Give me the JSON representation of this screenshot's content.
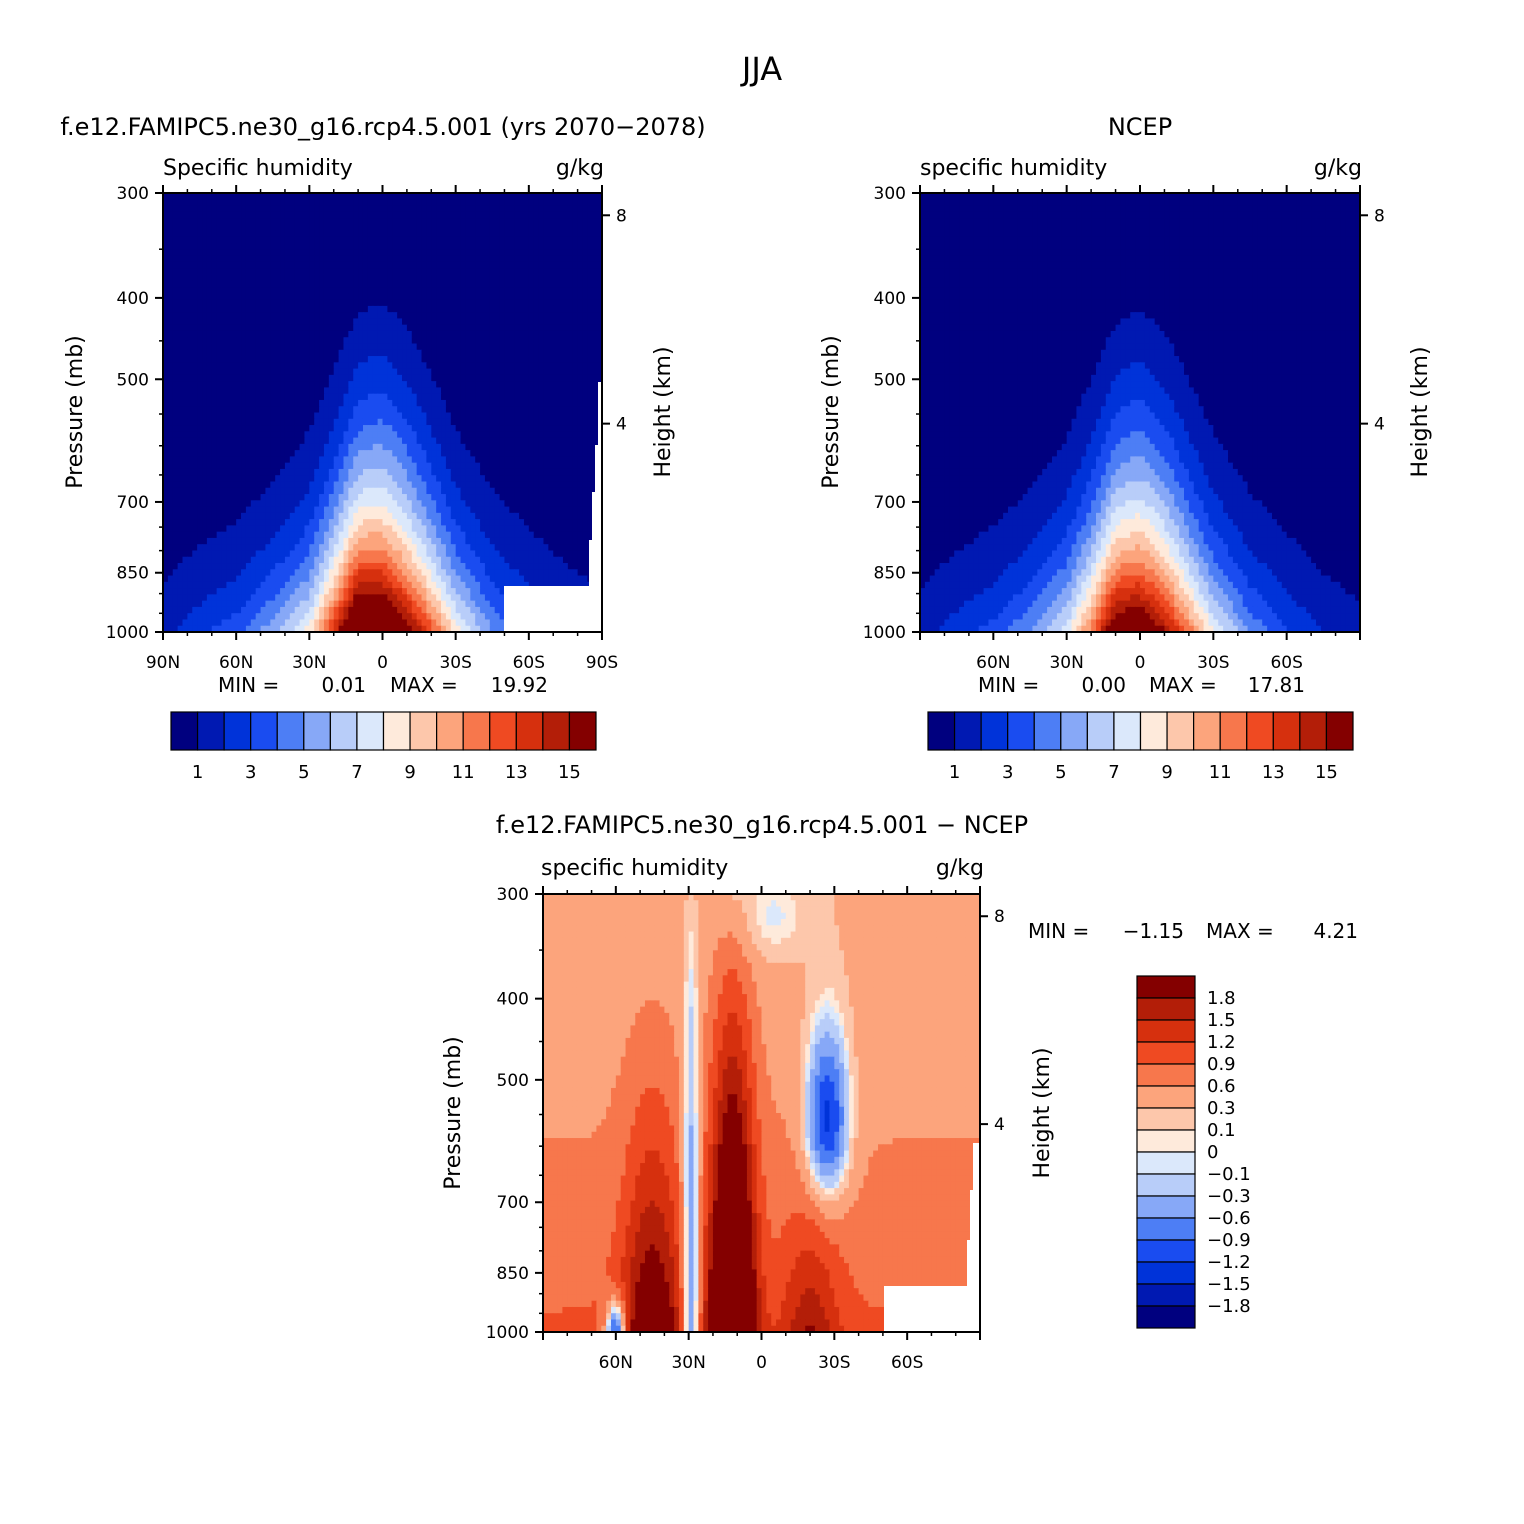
{
  "figure_title": "JJA",
  "chart_data": [
    {
      "type": "heatmap",
      "title": "f.e12.FAMIPC5.ne30_g16.rcp4.5.001 (yrs 2070-2078)",
      "left_label": "Specific humidity",
      "right_label": "g/kg",
      "xlabel": "",
      "ylabel": "Pressure (mb)",
      "y2label": "Height (km)",
      "x_ticks": [
        "90N",
        "60N",
        "30N",
        "0",
        "30S",
        "60S",
        "90S"
      ],
      "y_ticks": [
        "300",
        "400",
        "500",
        "700",
        "850",
        "1000"
      ],
      "y2_ticks": [
        "8",
        "4"
      ],
      "ylim": [
        1000,
        300
      ],
      "stats": {
        "min_label": "MIN =",
        "min": "0.01",
        "max_label": "MAX =",
        "max": "19.92"
      },
      "colorbar_labels": [
        "1",
        "3",
        "5",
        "7",
        "9",
        "11",
        "13",
        "15"
      ],
      "profile": [
        {
          "lat": 90,
          "q": 1.5
        },
        {
          "lat": 75,
          "q": 2.6
        },
        {
          "lat": 60,
          "q": 3.5
        },
        {
          "lat": 45,
          "q": 5.6
        },
        {
          "lat": 30,
          "q": 8.3
        },
        {
          "lat": 20,
          "q": 13.5
        },
        {
          "lat": 10,
          "q": 19.5
        },
        {
          "lat": 0,
          "q": 19.0
        },
        {
          "lat": -10,
          "q": 16.0
        },
        {
          "lat": -20,
          "q": 12.5
        },
        {
          "lat": -30,
          "q": 8.5
        },
        {
          "lat": -45,
          "q": 5.0
        },
        {
          "lat": -60,
          "q": 3.2
        },
        {
          "lat": -75,
          "q": 2.0
        },
        {
          "lat": -90,
          "q": 1.5
        }
      ]
    },
    {
      "type": "heatmap",
      "title": "NCEP",
      "left_label": "specific humidity",
      "right_label": "g/kg",
      "xlabel": "",
      "ylabel": "Pressure (mb)",
      "y2label": "Height (km)",
      "x_ticks": [
        "60N",
        "30N",
        "0",
        "30S",
        "60S"
      ],
      "y_ticks": [
        "300",
        "400",
        "500",
        "700",
        "850",
        "1000"
      ],
      "y2_ticks": [
        "8",
        "4"
      ],
      "ylim": [
        1000,
        300
      ],
      "stats": {
        "min_label": "MIN =",
        "min": "0.00",
        "max_label": "MAX =",
        "max": "17.81"
      },
      "colorbar_labels": [
        "1",
        "3",
        "5",
        "7",
        "9",
        "11",
        "13",
        "15"
      ],
      "profile": [
        {
          "lat": 90,
          "q": 1.4
        },
        {
          "lat": 75,
          "q": 2.4
        },
        {
          "lat": 60,
          "q": 3.3
        },
        {
          "lat": 45,
          "q": 5.0
        },
        {
          "lat": 30,
          "q": 7.5
        },
        {
          "lat": 20,
          "q": 11.5
        },
        {
          "lat": 10,
          "q": 17.0
        },
        {
          "lat": 0,
          "q": 17.5
        },
        {
          "lat": -10,
          "q": 15.0
        },
        {
          "lat": -20,
          "q": 11.5
        },
        {
          "lat": -30,
          "q": 8.0
        },
        {
          "lat": -45,
          "q": 4.8
        },
        {
          "lat": -60,
          "q": 3.0
        },
        {
          "lat": -75,
          "q": 1.8
        },
        {
          "lat": -90,
          "q": 1.2
        }
      ]
    },
    {
      "type": "heatmap",
      "title": "f.e12.FAMIPC5.ne30_g16.rcp4.5.001 - NCEP",
      "left_label": "specific humidity",
      "right_label": "g/kg",
      "xlabel": "",
      "ylabel": "Pressure (mb)",
      "y2label": "Height (km)",
      "x_ticks": [
        "60N",
        "30N",
        "0",
        "30S",
        "60S"
      ],
      "y_ticks": [
        "300",
        "400",
        "500",
        "700",
        "850",
        "1000"
      ],
      "y2_ticks": [
        "8",
        "4"
      ],
      "ylim": [
        1000,
        300
      ],
      "stats": {
        "min_label": "MIN =",
        "min": "-1.15",
        "max_label": "MAX =",
        "max": "4.21"
      },
      "colorbar_labels": [
        "1.8",
        "1.5",
        "1.2",
        "0.9",
        "0.6",
        "0.3",
        "0.1",
        "0",
        "-0.1",
        "-0.3",
        "-0.6",
        "-0.9",
        "-1.2",
        "-1.5",
        "-1.8"
      ],
      "levels": [
        -1.8,
        -1.5,
        -1.2,
        -0.9,
        -0.6,
        -0.3,
        -0.1,
        0,
        0.1,
        0.3,
        0.6,
        0.9,
        1.2,
        1.5,
        1.8
      ]
    }
  ],
  "colors": {
    "sequential_16": [
      "#00007f",
      "#0019b2",
      "#0033d9",
      "#1a4cf0",
      "#4d7ef5",
      "#87a8f7",
      "#b8cdf9",
      "#dbe8fb",
      "#feeadb",
      "#fdc7ab",
      "#fca47c",
      "#f7774c",
      "#ef4a22",
      "#d6300e",
      "#b31e08",
      "#840000"
    ],
    "diverging_16": [
      "#00007f",
      "#0019b2",
      "#0033d9",
      "#1a4cf0",
      "#4d7ef5",
      "#87a8f7",
      "#b8cdf9",
      "#dbe8fb",
      "#feeadb",
      "#fdc7ab",
      "#fca47c",
      "#f7774c",
      "#ef4a22",
      "#d6300e",
      "#b31e08",
      "#840000"
    ],
    "axis": "#000000"
  }
}
